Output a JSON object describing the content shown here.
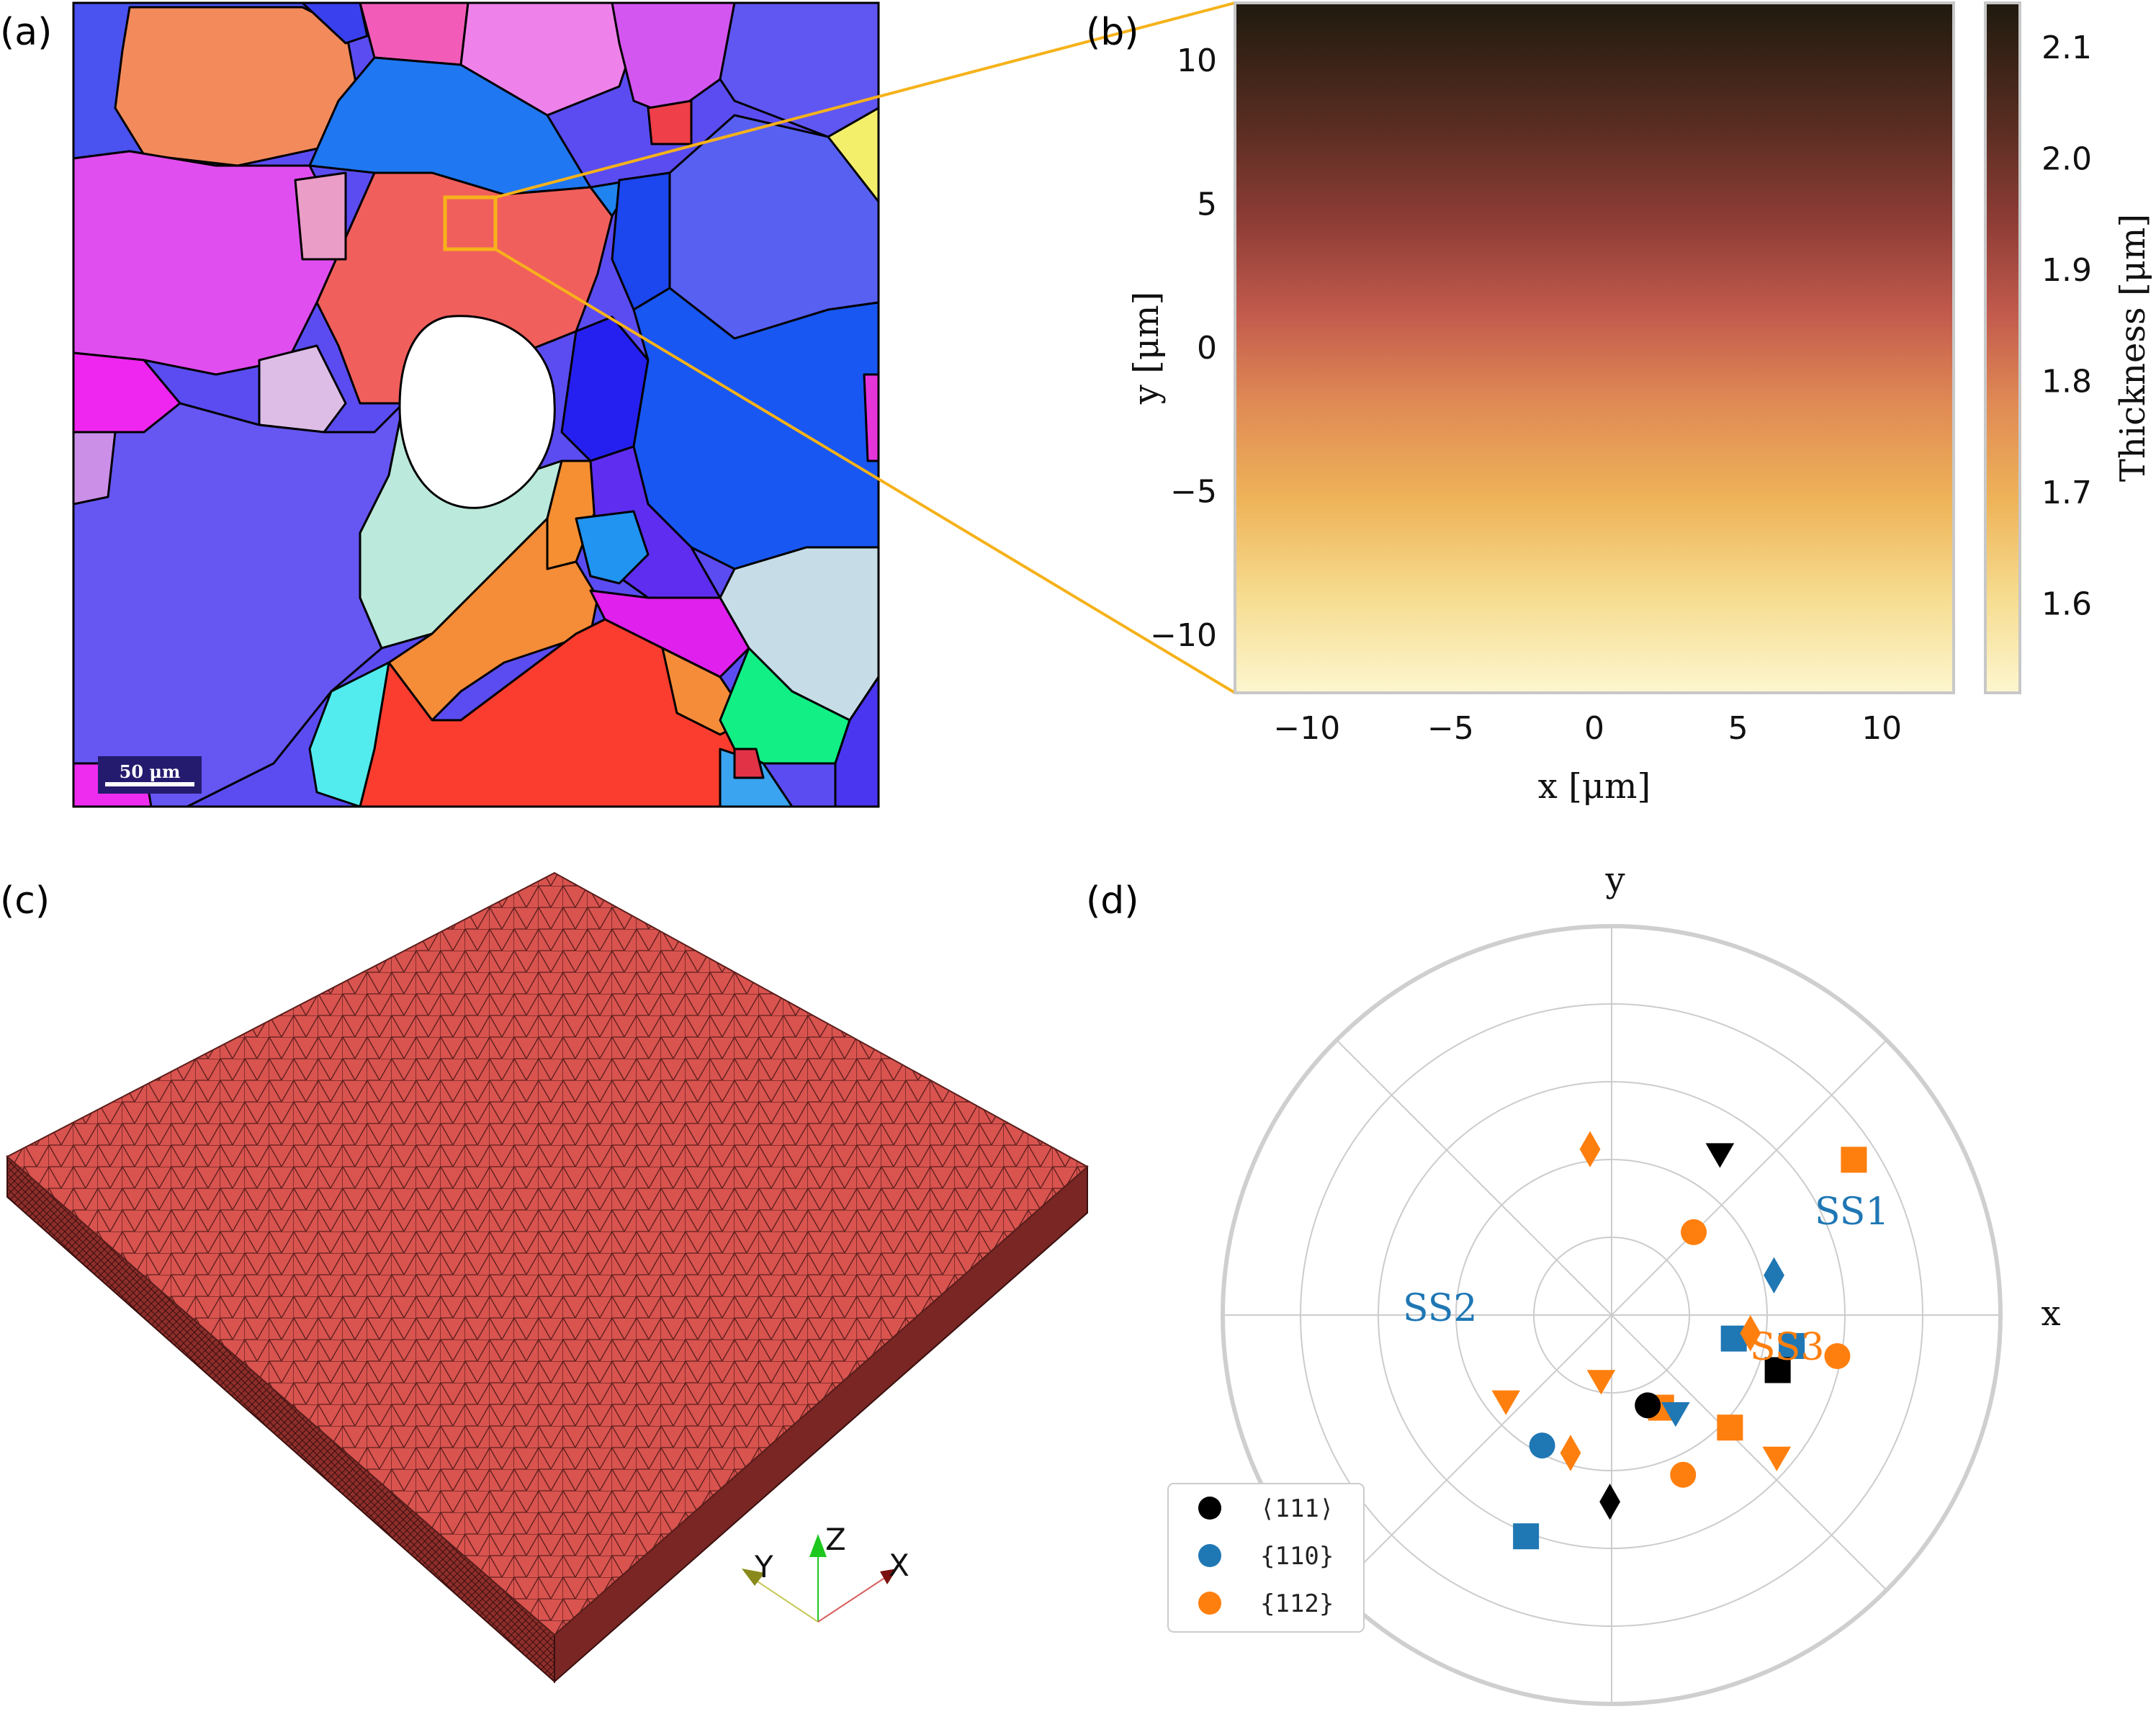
{
  "panels": {
    "a": {
      "label": "(a)",
      "scale_bar": "50 μm"
    },
    "b": {
      "label": "(b)"
    },
    "c": {
      "label": "(c)",
      "triad": {
        "x": "X",
        "y": "Y",
        "z": "Z"
      }
    },
    "d": {
      "label": "(d)"
    }
  },
  "chart_data": [
    {
      "type": "heatmap",
      "panel": "b",
      "xlabel": "x [μm]",
      "ylabel": "y [μm]",
      "xlim": [
        -12.5,
        12.5
      ],
      "ylim": [
        -12,
        12
      ],
      "xticks": [
        "−10",
        "−5",
        "0",
        "5",
        "10"
      ],
      "yticks": [
        "10",
        "5",
        "0",
        "−5",
        "−10"
      ],
      "colorbar": {
        "label": "Thickness [μm]",
        "ticks": [
          "2.1",
          "2.0",
          "1.9",
          "1.8",
          "1.7",
          "1.6"
        ],
        "range": [
          1.52,
          2.14
        ]
      }
    },
    {
      "type": "scatter",
      "panel": "d",
      "projection": "polar",
      "axis_labels": {
        "x": "x",
        "y": "y"
      },
      "annotations": [
        {
          "text": "SS1",
          "color": "#1f77b4"
        },
        {
          "text": "SS2",
          "color": "#1f77b4"
        },
        {
          "text": "SS3",
          "color": "#ff7f0e"
        }
      ],
      "legend": {
        "position": "lower-left",
        "entries": [
          {
            "label": "⟨111⟩",
            "color": "#000000"
          },
          {
            "label": "{110}",
            "color": "#1f77b4"
          },
          {
            "label": "{112}",
            "color": "#ff7f0e"
          }
        ]
      },
      "points": [
        {
          "x": 0.57,
          "y": 0.74,
          "marker": "square",
          "color": "#ff7f0e"
        },
        {
          "x": 0.98,
          "y": 0.5,
          "marker": "triangle-down",
          "color": "#000000"
        },
        {
          "x": -1.15,
          "y": 0.45,
          "marker": "circle",
          "color": "#ff7f0e"
        },
        {
          "x": -0.17,
          "y": 0.47,
          "marker": "square",
          "color": "#1f77b4"
        },
        {
          "x": 1.7,
          "y": 0.43,
          "marker": "diamond",
          "color": "#ff7f0e"
        },
        {
          "x": -2.06,
          "y": 0.38,
          "marker": "circle",
          "color": "#1f77b4"
        },
        {
          "x": 0.79,
          "y": 0.3,
          "marker": "circle",
          "color": "#ff7f0e"
        },
        {
          "x": -1.58,
          "y": 0.48,
          "marker": "diamond",
          "color": "#000000"
        },
        {
          "x": -1.08,
          "y": 0.27,
          "marker": "square",
          "color": "#ff7f0e"
        },
        {
          "x": 0.24,
          "y": 0.43,
          "marker": "diamond",
          "color": "#1f77b4"
        },
        {
          "x": -2.46,
          "y": 0.35,
          "marker": "triangle-down",
          "color": "#ff7f0e"
        },
        {
          "x": -0.19,
          "y": 0.32,
          "marker": "square",
          "color": "#1f77b4"
        },
        {
          "x": -0.13,
          "y": 0.36,
          "marker": "diamond",
          "color": "#ff7f0e"
        },
        {
          "x": -0.18,
          "y": 0.59,
          "marker": "circle",
          "color": "#ff7f0e"
        },
        {
          "x": -0.32,
          "y": 0.45,
          "marker": "square",
          "color": "#000000"
        },
        {
          "x": -1.73,
          "y": 0.17,
          "marker": "triangle-down",
          "color": "#ff7f0e"
        },
        {
          "x": -0.76,
          "y": 0.42,
          "marker": "square",
          "color": "#ff7f0e"
        },
        {
          "x": -1.19,
          "y": 0.25,
          "marker": "circle",
          "color": "#000000"
        },
        {
          "x": -0.99,
          "y": 0.3,
          "marker": "triangle-down",
          "color": "#1f77b4"
        },
        {
          "x": -0.71,
          "y": 0.56,
          "marker": "triangle-down",
          "color": "#ff7f0e"
        },
        {
          "x": -1.86,
          "y": 0.37,
          "marker": "diamond",
          "color": "#ff7f0e"
        },
        {
          "x": -1.94,
          "y": 0.61,
          "marker": "square",
          "color": "#1f77b4"
        }
      ]
    }
  ]
}
